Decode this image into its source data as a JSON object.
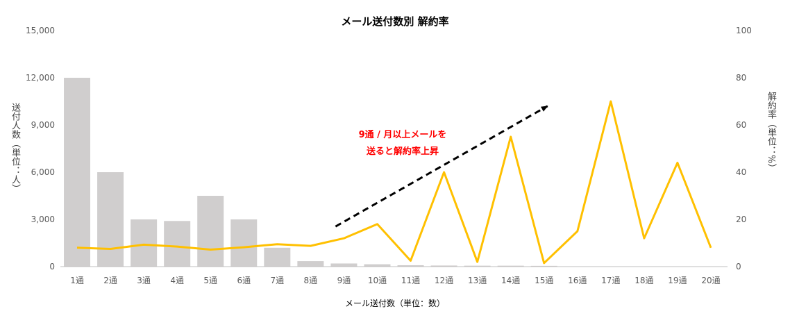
{
  "chart_data": {
    "type": "bar+line",
    "title": "メール送付数別 解約率",
    "xlabel": "メール送付数（単位：数）",
    "ylabel_left": "送付人数（単位：人）",
    "ylabel_right": "解約率（単位：%）",
    "categories": [
      "1通",
      "2通",
      "3通",
      "4通",
      "5通",
      "6通",
      "7通",
      "8通",
      "9通",
      "10通",
      "11通",
      "12通",
      "13通",
      "14通",
      "15通",
      "16通",
      "17通",
      "18通",
      "19通",
      "20通"
    ],
    "y_left": {
      "min": 0,
      "max": 15000,
      "ticks": [
        "0",
        "3,000",
        "6,000",
        "9,000",
        "12,000",
        "15,000"
      ]
    },
    "y_right": {
      "min": 0,
      "max": 100,
      "ticks": [
        "0",
        "20",
        "40",
        "60",
        "80",
        "100"
      ]
    },
    "series": [
      {
        "type": "bar",
        "axis": "left",
        "color": "#d0cece",
        "values": [
          12000,
          6000,
          3000,
          2900,
          4500,
          3000,
          1200,
          350,
          200,
          150,
          90,
          70,
          60,
          60,
          50,
          0,
          0,
          0,
          0,
          0
        ]
      },
      {
        "type": "line",
        "axis": "right",
        "color": "#ffc000",
        "values": [
          8,
          7.5,
          9.3,
          8.5,
          7.2,
          8.2,
          9.5,
          8.8,
          12,
          18,
          2.5,
          40,
          2,
          55,
          1.5,
          15,
          70,
          12,
          44,
          8
        ]
      }
    ],
    "annotation": {
      "line1": "9通 / 月以上メールを",
      "line2": "送ると解約率上昇",
      "color": "#ff0000"
    },
    "trend_arrow": {
      "from": [
        "8通",
        17
      ],
      "to": [
        "15通",
        68
      ],
      "style": "dashed",
      "color": "#000000"
    },
    "grid": false,
    "legend": "none"
  }
}
